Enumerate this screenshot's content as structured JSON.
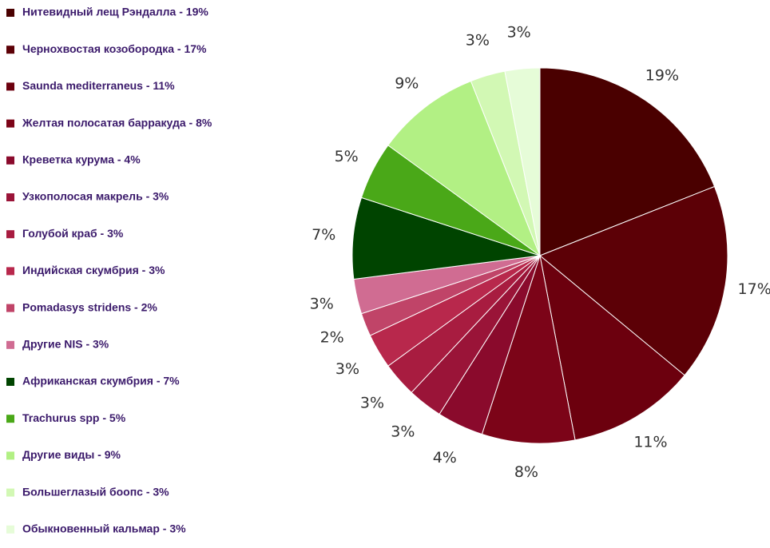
{
  "chart_data": {
    "type": "pie",
    "categories": [
      "Нитевидный лещ Рэндалла - 19%",
      "Чернохвостая козобородка - 17%",
      "Saunda mediterraneus - 11%",
      "Желтая полосатая барракуда - 8%",
      "Креветка курума - 4%",
      "Узкополосая макрель - 3%",
      "Голубой краб - 3%",
      "Индийская скумбрия - 3%",
      "Pomadasys stridens - 2%",
      "Другие NIS - 3%",
      "Африканская скумбрия - 7%",
      "Trachurus spp - 5%",
      "Другие виды - 9%",
      "Большеглазый боопс - 3%",
      "Обыкновенный кальмар - 3%"
    ],
    "values": [
      19,
      17,
      11,
      8,
      4,
      3,
      3,
      3,
      2,
      3,
      7,
      5,
      9,
      3,
      3
    ],
    "value_labels": [
      "19%",
      "17%",
      "11%",
      "8%",
      "4%",
      "3%",
      "3%",
      "3%",
      "2%",
      "3%",
      "7%",
      "5%",
      "9%",
      "3%",
      "3%"
    ],
    "colors": [
      "#4a0000",
      "#5c0006",
      "#6c000e",
      "#7c0418",
      "#8a0a2c",
      "#9a1438",
      "#a81c40",
      "#b8284c",
      "#c04468",
      "#d06c92",
      "#004400",
      "#4aa818",
      "#b2f084",
      "#d2f8b4",
      "#e6fcd8"
    ],
    "legend": "left"
  }
}
